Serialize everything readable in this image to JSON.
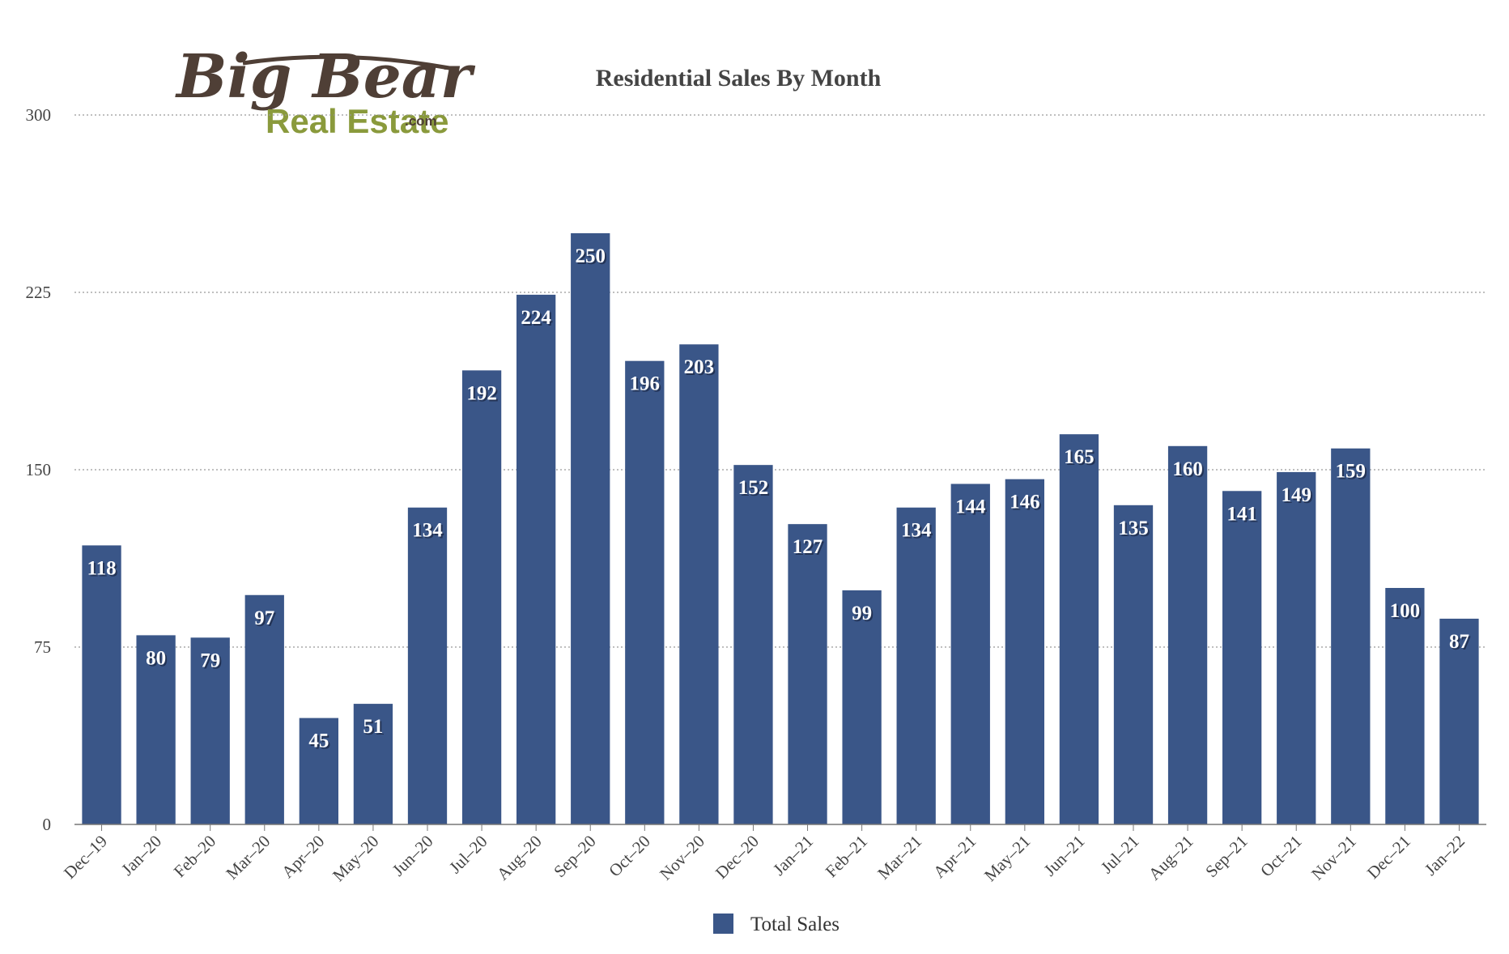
{
  "logo": {
    "line1": "Big Bear",
    "line2": "Real Estate",
    "suffix": ".com"
  },
  "colors": {
    "bar": "#3a5688",
    "grid": "#999999",
    "axis": "#777777",
    "label_shadow": "#1a2540"
  },
  "chart_data": {
    "type": "bar",
    "title": "Residential Sales By Month",
    "xlabel": "",
    "ylabel": "",
    "ylim": [
      0,
      300
    ],
    "yticks": [
      0,
      75,
      150,
      225,
      300
    ],
    "grid": true,
    "legend_position": "bottom-center",
    "categories": [
      "Dec–19",
      "Jan–20",
      "Feb–20",
      "Mar–20",
      "Apr–20",
      "May–20",
      "Jun–20",
      "Jul–20",
      "Aug–20",
      "Sep–20",
      "Oct–20",
      "Nov–20",
      "Dec–20",
      "Jan–21",
      "Feb–21",
      "Mar–21",
      "Apr–21",
      "May–21",
      "Jun–21",
      "Jul–21",
      "Aug–21",
      "Sep–21",
      "Oct–21",
      "Nov–21",
      "Dec–21",
      "Jan–22"
    ],
    "series": [
      {
        "name": "Total Sales",
        "color": "#3a5688",
        "values": [
          118,
          80,
          79,
          97,
          45,
          51,
          134,
          192,
          224,
          250,
          196,
          203,
          152,
          127,
          99,
          134,
          144,
          146,
          165,
          135,
          160,
          141,
          149,
          159,
          100,
          87
        ]
      }
    ]
  }
}
